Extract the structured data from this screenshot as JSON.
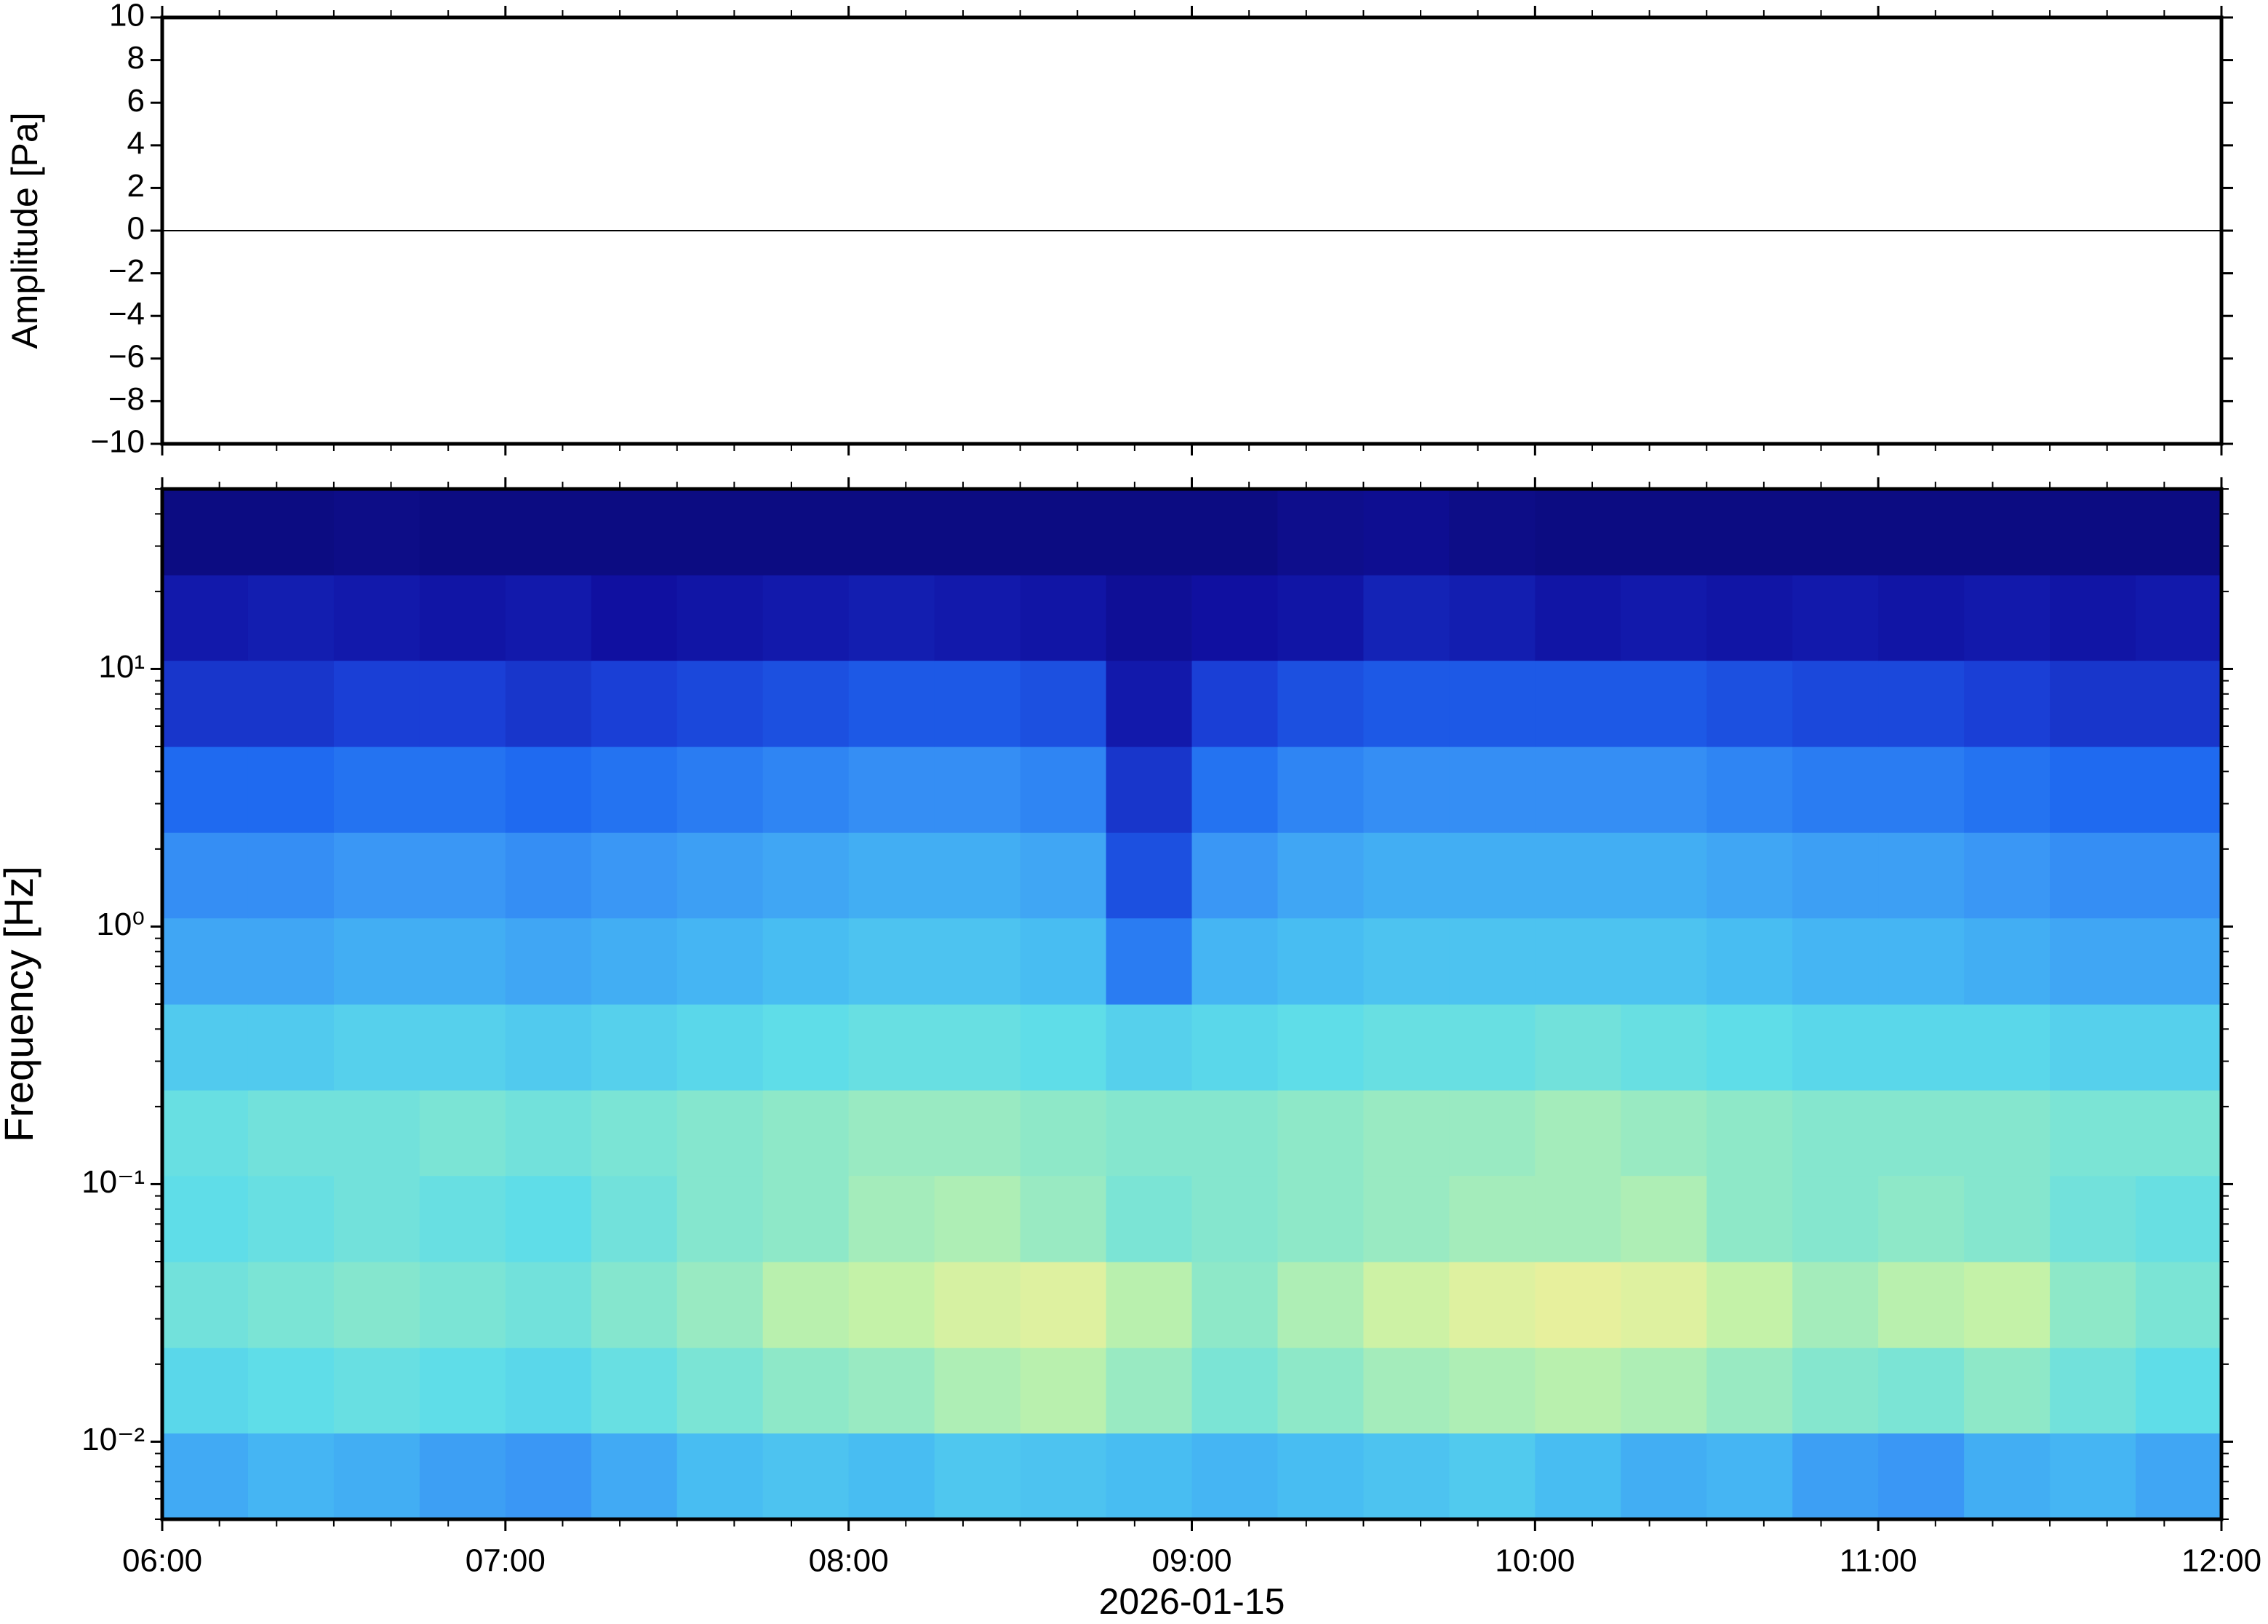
{
  "chart_data": [
    {
      "type": "line",
      "ylabel": "Amplitude [Pa]",
      "xlim": [
        6,
        12
      ],
      "xticks": [
        6,
        7,
        8,
        9,
        10,
        11,
        12
      ],
      "ylim": [
        -10,
        10
      ],
      "yticks": [
        {
          "value": -10,
          "label": "−10"
        },
        {
          "value": -8,
          "label": "−8"
        },
        {
          "value": -6,
          "label": "−6"
        },
        {
          "value": -4,
          "label": "−4"
        },
        {
          "value": -2,
          "label": "−2"
        },
        0,
        2,
        4,
        6,
        8,
        10
      ],
      "series": [
        {
          "color": "#000000",
          "x": [
            6,
            7,
            8,
            9,
            10,
            11,
            12
          ],
          "values": [
            0,
            0,
            0,
            0,
            0,
            0,
            0
          ]
        }
      ]
    },
    {
      "type": "heatmap",
      "ylabel": "Frequency [Hz]",
      "xlabel": "2026-01-15",
      "log_y": true,
      "xlim": [
        6,
        12
      ],
      "xticks": [
        {
          "value": 6,
          "label": "06:00"
        },
        {
          "value": 7,
          "label": "07:00"
        },
        {
          "value": 8,
          "label": "08:00"
        },
        {
          "value": 9,
          "label": "09:00"
        },
        {
          "value": 10,
          "label": "10:00"
        },
        {
          "value": 11,
          "label": "11:00"
        },
        {
          "value": 12,
          "label": "12:00"
        }
      ],
      "ylim": [
        0.005,
        50
      ],
      "yticks": [
        {
          "value": 0.01,
          "label": "10⁻²"
        },
        {
          "value": 0.1,
          "label": "10⁻¹"
        },
        {
          "value": 1,
          "label": "10⁰"
        },
        {
          "value": 10,
          "label": "10¹"
        }
      ],
      "x_edges": [
        6,
        6.25,
        6.5,
        6.75,
        7,
        7.25,
        7.5,
        7.75,
        8,
        8.25,
        8.5,
        8.75,
        9,
        9.25,
        9.5,
        9.75,
        10,
        10.25,
        10.5,
        10.75,
        11,
        11.25,
        11.5,
        11.75,
        12
      ],
      "y_edges": [
        0.005,
        0.0108,
        0.0232,
        0.05,
        0.108,
        0.232,
        0.5,
        1.08,
        2.32,
        5,
        10.8,
        23.2,
        50
      ],
      "zlim": [
        0,
        10
      ],
      "colormap": [
        "#0a0a6e",
        "#1010a0",
        "#1a3fd6",
        "#1f6af0",
        "#3a97f5",
        "#48bdf2",
        "#5fdde8",
        "#8ee8c8",
        "#c4f2a8",
        "#f0f09a",
        "#f8e070"
      ],
      "z": [
        [
          4.5,
          4.8,
          4.6,
          4.2,
          4.0,
          4.5,
          5.0,
          5.2,
          5.0,
          5.3,
          5.2,
          5.0,
          4.8,
          5.0,
          5.2,
          5.4,
          5.0,
          4.6,
          4.8,
          4.2,
          4.0,
          4.6,
          4.8,
          4.4
        ],
        [
          5.8,
          6.0,
          6.2,
          6.0,
          5.8,
          6.2,
          6.6,
          7.0,
          7.2,
          7.6,
          7.8,
          7.2,
          6.6,
          7.0,
          7.4,
          7.6,
          7.8,
          7.6,
          7.2,
          6.8,
          6.6,
          7.0,
          6.4,
          6.0
        ],
        [
          6.4,
          6.6,
          6.8,
          6.6,
          6.4,
          6.8,
          7.2,
          7.8,
          8.0,
          8.4,
          8.6,
          7.8,
          7.0,
          7.6,
          8.2,
          8.6,
          8.8,
          8.6,
          8.0,
          7.4,
          7.8,
          8.0,
          7.0,
          6.6
        ],
        [
          6.0,
          6.2,
          6.4,
          6.2,
          6.0,
          6.4,
          6.8,
          7.0,
          7.4,
          7.6,
          7.2,
          6.6,
          6.8,
          7.0,
          7.2,
          7.4,
          7.4,
          7.6,
          7.0,
          6.8,
          7.0,
          6.8,
          6.4,
          6.2
        ],
        [
          6.2,
          6.4,
          6.4,
          6.6,
          6.4,
          6.6,
          6.8,
          7.0,
          7.2,
          7.2,
          7.0,
          6.8,
          6.8,
          7.0,
          7.2,
          7.2,
          7.4,
          7.2,
          7.0,
          6.8,
          6.8,
          6.8,
          6.6,
          6.6
        ],
        [
          5.4,
          5.4,
          5.6,
          5.6,
          5.4,
          5.6,
          5.8,
          6.0,
          6.2,
          6.2,
          6.0,
          5.6,
          5.8,
          6.0,
          6.2,
          6.2,
          6.4,
          6.2,
          6.0,
          5.8,
          5.8,
          5.8,
          5.6,
          5.6
        ],
        [
          4.4,
          4.4,
          4.6,
          4.6,
          4.4,
          4.6,
          4.8,
          5.0,
          5.2,
          5.2,
          5.0,
          3.4,
          4.8,
          5.0,
          5.2,
          5.2,
          5.2,
          5.2,
          5.0,
          4.8,
          4.8,
          4.6,
          4.4,
          4.4
        ],
        [
          3.8,
          3.8,
          4.0,
          4.0,
          3.8,
          4.0,
          4.2,
          4.4,
          4.6,
          4.6,
          4.4,
          2.4,
          4.0,
          4.4,
          4.6,
          4.6,
          4.6,
          4.6,
          4.4,
          4.2,
          4.2,
          4.0,
          3.8,
          3.8
        ],
        [
          3.0,
          3.0,
          3.2,
          3.2,
          3.0,
          3.2,
          3.4,
          3.6,
          3.8,
          3.8,
          3.6,
          1.8,
          3.2,
          3.6,
          3.8,
          3.8,
          3.8,
          3.8,
          3.6,
          3.4,
          3.4,
          3.2,
          3.0,
          3.0
        ],
        [
          1.8,
          1.8,
          2.0,
          2.0,
          1.8,
          2.0,
          2.2,
          2.4,
          2.6,
          2.6,
          2.4,
          1.2,
          2.0,
          2.4,
          2.6,
          2.6,
          2.6,
          2.6,
          2.4,
          2.2,
          2.2,
          2.0,
          1.8,
          1.8
        ],
        [
          1.2,
          1.3,
          1.2,
          1.1,
          1.2,
          1.0,
          1.1,
          1.2,
          1.3,
          1.2,
          1.1,
          0.8,
          1.0,
          1.1,
          1.4,
          1.3,
          1.1,
          1.2,
          1.1,
          1.2,
          1.1,
          1.2,
          1.1,
          1.2
        ],
        [
          0.4,
          0.4,
          0.5,
          0.4,
          0.4,
          0.4,
          0.4,
          0.4,
          0.4,
          0.4,
          0.4,
          0.4,
          0.4,
          0.6,
          0.7,
          0.5,
          0.4,
          0.4,
          0.4,
          0.4,
          0.4,
          0.4,
          0.4,
          0.4
        ]
      ]
    }
  ]
}
